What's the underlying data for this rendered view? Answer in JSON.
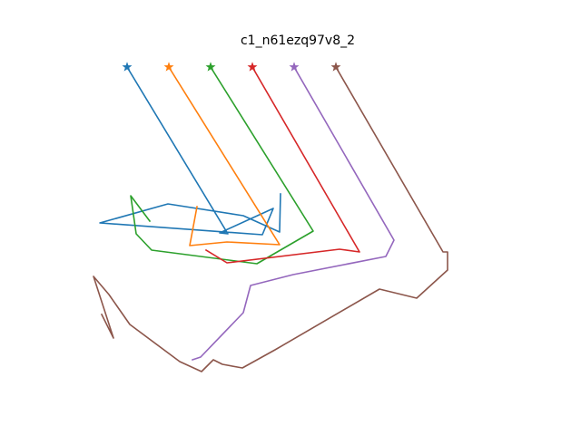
{
  "figure": {
    "title": "c1_n61ezq97v8_2"
  },
  "traces": [
    {
      "color": "#1f77b4",
      "start_marker": "star",
      "points": [
        [
          140,
          74
        ],
        [
          251,
          258
        ],
        [
          242,
          257
        ],
        [
          301,
          230
        ],
        [
          289,
          259
        ],
        [
          110,
          246
        ],
        [
          185,
          225
        ],
        [
          268,
          238
        ],
        [
          308,
          256
        ],
        [
          309,
          214
        ]
      ]
    },
    {
      "color": "#ff7f0e",
      "start_marker": "star",
      "points": [
        [
          186,
          74
        ],
        [
          308,
          270
        ],
        [
          250,
          267
        ],
        [
          209,
          271
        ],
        [
          217,
          228
        ]
      ]
    },
    {
      "color": "#2ca02c",
      "start_marker": "star",
      "points": [
        [
          232,
          74
        ],
        [
          345,
          255
        ],
        [
          283,
          291
        ],
        [
          167,
          276
        ],
        [
          150,
          258
        ],
        [
          144,
          216
        ],
        [
          165,
          244
        ]
      ]
    },
    {
      "color": "#d62728",
      "start_marker": "star",
      "points": [
        [
          278,
          74
        ],
        [
          396,
          278
        ],
        [
          374,
          275
        ],
        [
          250,
          290
        ],
        [
          227,
          276
        ]
      ]
    },
    {
      "color": "#9467bd",
      "start_marker": "star",
      "points": [
        [
          324,
          74
        ],
        [
          434,
          265
        ],
        [
          425,
          283
        ],
        [
          323,
          303
        ],
        [
          276,
          315
        ],
        [
          268,
          345
        ],
        [
          221,
          394
        ],
        [
          212,
          397
        ]
      ]
    },
    {
      "color": "#8c564b",
      "start_marker": "star",
      "points": [
        [
          370,
          74
        ],
        [
          488,
          278
        ],
        [
          493,
          278
        ],
        [
          493,
          298
        ],
        [
          459,
          329
        ],
        [
          418,
          319
        ],
        [
          303,
          386
        ],
        [
          267,
          406
        ],
        [
          245,
          402
        ],
        [
          235,
          397
        ],
        [
          222,
          410
        ],
        [
          198,
          399
        ],
        [
          143,
          358
        ],
        [
          120,
          325
        ],
        [
          103,
          305
        ],
        [
          125,
          373
        ],
        [
          112,
          347
        ]
      ]
    }
  ]
}
